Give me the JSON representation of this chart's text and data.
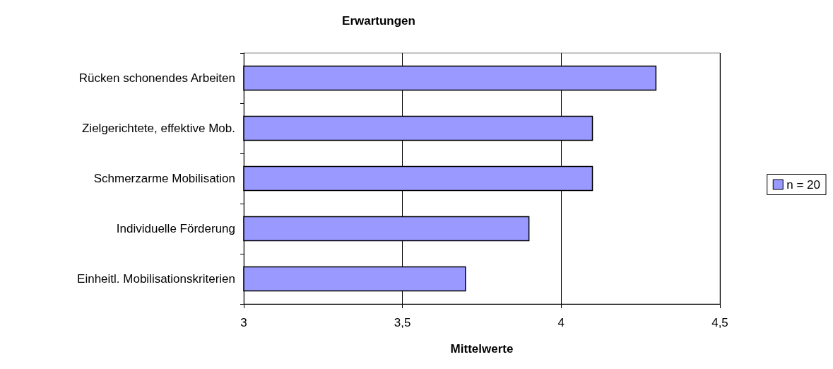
{
  "chart_data": {
    "type": "bar",
    "orientation": "horizontal",
    "title": "Erwartungen",
    "xlabel": "Mittelwerte",
    "categories": [
      "Rücken schonendes Arbeiten",
      "Zielgerichtete, effektive Mob.",
      "Schmerzarme Mobilisation",
      "Individuelle Förderung",
      "Einheitl. Mobilisationskriterien"
    ],
    "series": [
      {
        "name": "n = 20",
        "color": "#9999ff",
        "values": [
          4.3,
          4.1,
          4.1,
          3.9,
          3.7
        ]
      }
    ],
    "xlim": [
      3,
      4.5
    ],
    "xticks": [
      {
        "value": 3,
        "label": "3"
      },
      {
        "value": 3.5,
        "label": "3,5"
      },
      {
        "value": 4,
        "label": "4"
      },
      {
        "value": 4.5,
        "label": "4,5"
      }
    ],
    "grid": "x",
    "legend": "right"
  }
}
